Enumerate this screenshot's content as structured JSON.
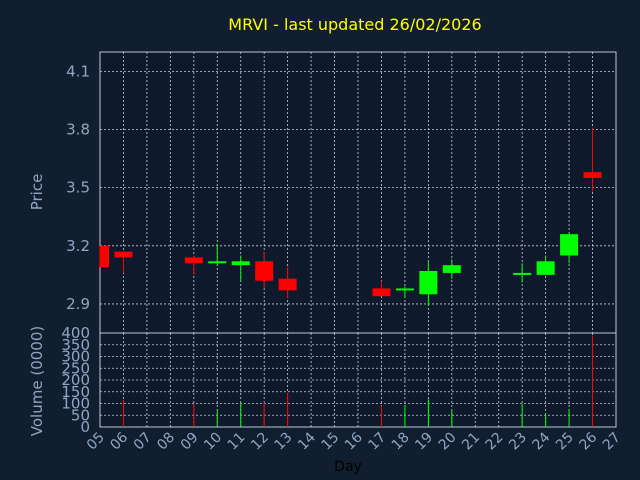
{
  "chart_data": {
    "type": "candlestick",
    "title": "MRVI - last updated 26/02/2026",
    "xlabel": "Day",
    "price_panel": {
      "ylabel": "Price",
      "ylim": [
        2.75,
        4.2
      ],
      "yticks": [
        2.9,
        3.2,
        3.5,
        3.8,
        4.1
      ],
      "ytick_labels": [
        "2.9",
        "3.2",
        "3.5",
        "3.8",
        "4.1"
      ],
      "grid": true
    },
    "volume_panel": {
      "ylabel": "Volume (0000)",
      "ylim": [
        0,
        400
      ],
      "yticks": [
        0,
        50,
        100,
        150,
        200,
        250,
        300,
        350,
        400
      ],
      "ytick_labels": [
        "0",
        "50",
        "100",
        "150",
        "200",
        "250",
        "300",
        "350",
        "400"
      ],
      "grid": true
    },
    "x_ticks": [
      "05",
      "06",
      "07",
      "08",
      "09",
      "10",
      "11",
      "12",
      "13",
      "14",
      "15",
      "16",
      "17",
      "18",
      "19",
      "20",
      "21",
      "22",
      "23",
      "24",
      "25",
      "26",
      "27"
    ],
    "colors": {
      "up": "#00ff00",
      "down": "#ff0000"
    },
    "candles": [
      {
        "day": "05",
        "open": 3.2,
        "close": 3.09,
        "high": 3.2,
        "low": 3.09,
        "volume": 0
      },
      {
        "day": "06",
        "open": 3.17,
        "close": 3.14,
        "high": 3.17,
        "low": 3.06,
        "volume": 115
      },
      {
        "day": "09",
        "open": 3.14,
        "close": 3.11,
        "high": 3.15,
        "low": 3.05,
        "volume": 98
      },
      {
        "day": "10",
        "open": 3.11,
        "close": 3.12,
        "high": 3.21,
        "low": 3.1,
        "volume": 72
      },
      {
        "day": "11",
        "open": 3.1,
        "close": 3.12,
        "high": 3.15,
        "low": 3.02,
        "volume": 105
      },
      {
        "day": "12",
        "open": 3.12,
        "close": 3.02,
        "high": 3.17,
        "low": 2.98,
        "volume": 105
      },
      {
        "day": "13",
        "open": 3.03,
        "close": 2.97,
        "high": 3.09,
        "low": 2.93,
        "volume": 145
      },
      {
        "day": "17",
        "open": 2.98,
        "close": 2.94,
        "high": 3.02,
        "low": 2.94,
        "volume": 92
      },
      {
        "day": "18",
        "open": 2.97,
        "close": 2.98,
        "high": 2.99,
        "low": 2.93,
        "volume": 95
      },
      {
        "day": "19",
        "open": 2.95,
        "close": 3.07,
        "high": 3.12,
        "low": 2.89,
        "volume": 118
      },
      {
        "day": "20",
        "open": 3.06,
        "close": 3.1,
        "high": 3.13,
        "low": 3.03,
        "volume": 72
      },
      {
        "day": "23",
        "open": 3.05,
        "close": 3.06,
        "high": 3.11,
        "low": 3.01,
        "volume": 98
      },
      {
        "day": "24",
        "open": 3.05,
        "close": 3.12,
        "high": 3.15,
        "low": 3.05,
        "volume": 58
      },
      {
        "day": "25",
        "open": 3.15,
        "close": 3.26,
        "high": 3.26,
        "low": 3.11,
        "volume": 75
      },
      {
        "day": "26",
        "open": 3.58,
        "close": 3.55,
        "high": 3.81,
        "low": 3.48,
        "volume": 388
      }
    ]
  }
}
